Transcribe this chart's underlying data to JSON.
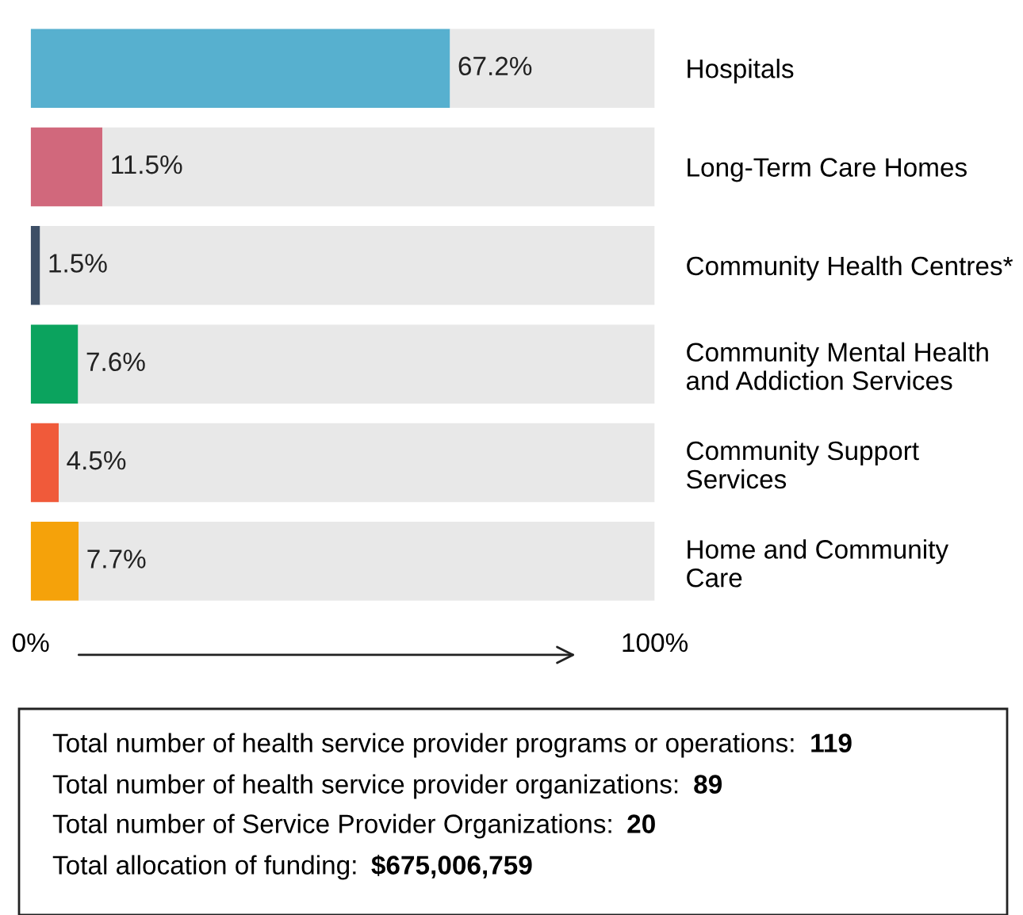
{
  "chart_data": {
    "type": "bar",
    "orientation": "horizontal",
    "stacked": true,
    "categories": [
      "Hospitals",
      "Long-Term Care Homes",
      "Community Health Centres*",
      "Community Mental Health\nand Addiction Services",
      "Community Support\nServices",
      "Home and Community\nCare"
    ],
    "series": [
      {
        "colors": [
          "#57b0cf",
          "#d1687c",
          "#3d4f66",
          "#0ba35e",
          "#f05a3a",
          "#f5a20a"
        ],
        "values": [
          67.2,
          11.5,
          1.5,
          7.6,
          4.5,
          7.7
        ],
        "value_labels": [
          "67.2%",
          "11.5%",
          "1.5%",
          "7.6%",
          "4.5%",
          "7.7%"
        ]
      },
      {
        "color": "#e8e8e8",
        "values": [
          32.8,
          88.5,
          98.5,
          92.4,
          95.5,
          92.3
        ]
      }
    ],
    "xlim": [
      0,
      100
    ],
    "xticks": [
      {
        "value": 0,
        "label": "0%"
      },
      {
        "value": 100,
        "label": "100%"
      }
    ],
    "grid": false,
    "legend": false,
    "annotations": [
      "Total number of health service provider programs or operations: 119",
      "Total number of health service provider organizations: 89",
      "Total number of Service Provider Organizations: 20",
      "Total allocation of funding: $675,006,759"
    ]
  }
}
